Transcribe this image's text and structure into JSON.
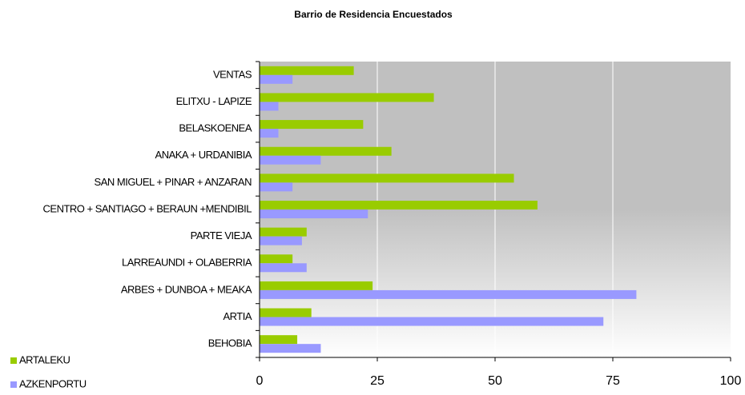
{
  "chart_data": {
    "type": "barh",
    "title": "Barrio de Residencia Encuestados",
    "categories": [
      "VENTAS",
      "ELITXU - LAPIZE",
      "BELASKOENEA",
      "ANAKA + URDANIBIA",
      "SAN MIGUEL + PINAR + ANZARAN",
      "CENTRO + SANTIAGO + BERAUN +MENDIBIL",
      "PARTE VIEJA",
      "LARREAUNDI + OLABERRIA",
      "ARBES + DUNBOA + MEAKA",
      "ARTIA",
      "BEHOBIA"
    ],
    "series": [
      {
        "name": "ARTALEKU",
        "color": "#99cc00",
        "values": [
          20,
          37,
          22,
          28,
          54,
          59,
          10,
          7,
          24,
          11,
          8
        ]
      },
      {
        "name": "AZKENPORTU",
        "color": "#9999ff",
        "values": [
          7,
          4,
          4,
          13,
          7,
          23,
          9,
          10,
          80,
          73,
          13
        ]
      }
    ],
    "xlim": [
      0,
      100
    ],
    "xticks": [
      0,
      25,
      50,
      75,
      100
    ],
    "grid": true,
    "legend": "bottom-left"
  }
}
